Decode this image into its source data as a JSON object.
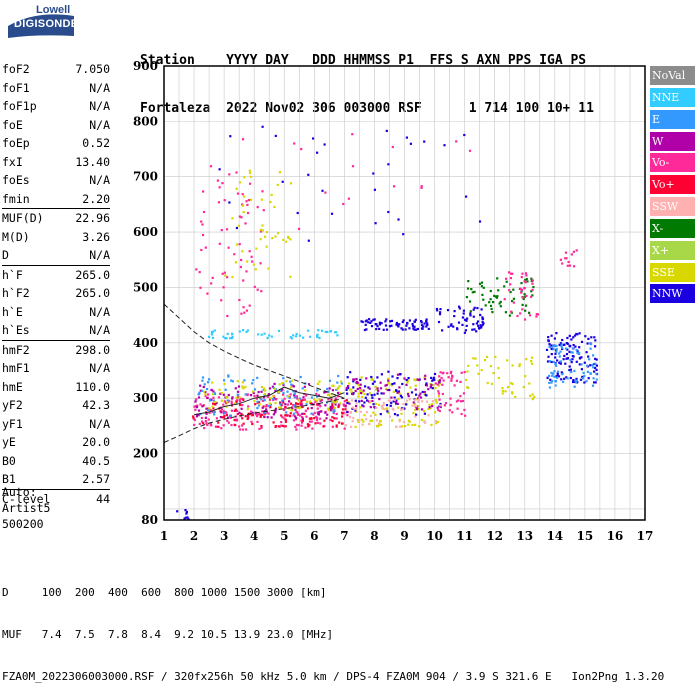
{
  "logo": {
    "line1": "Lowell",
    "line2": "DIGISONDE"
  },
  "header": {
    "line1": "Station    YYYY DAY   DDD HHMMSS P1  FFS S AXN PPS IGA PS",
    "line2": "Fortaleza  2022 Nov02 306 003000 RSF      1 714 100 10+ 11"
  },
  "params": [
    {
      "group": [
        {
          "name": "foF2",
          "value": "7.050"
        },
        {
          "name": "foF1",
          "value": "N/A"
        },
        {
          "name": "foF1p",
          "value": "N/A"
        },
        {
          "name": "foE",
          "value": "N/A"
        },
        {
          "name": "foEp",
          "value": "0.52"
        },
        {
          "name": "fxI",
          "value": "13.40"
        },
        {
          "name": "foEs",
          "value": "N/A"
        },
        {
          "name": "fmin",
          "value": "2.20"
        }
      ]
    },
    {
      "group": [
        {
          "name": "MUF(D)",
          "value": "22.96"
        },
        {
          "name": "M(D)",
          "value": "3.26"
        },
        {
          "name": "D",
          "value": "N/A"
        }
      ]
    },
    {
      "group": [
        {
          "name": "h`F",
          "value": "265.0"
        },
        {
          "name": "h`F2",
          "value": "265.0"
        },
        {
          "name": "h`E",
          "value": "N/A"
        },
        {
          "name": "h`Es",
          "value": "N/A"
        }
      ]
    },
    {
      "group": [
        {
          "name": "hmF2",
          "value": "298.0"
        },
        {
          "name": "hmF1",
          "value": "N/A"
        },
        {
          "name": "hmE",
          "value": "110.0"
        },
        {
          "name": "yF2",
          "value": "42.3"
        },
        {
          "name": "yF1",
          "value": "N/A"
        },
        {
          "name": "yE",
          "value": "20.0"
        },
        {
          "name": "B0",
          "value": "40.5"
        },
        {
          "name": "B1",
          "value": "2.57"
        }
      ]
    },
    {
      "group": [
        {
          "name": "C-level",
          "value": "44"
        }
      ]
    }
  ],
  "auto": {
    "line1": "Auto:",
    "line2": "Artist5",
    "line3": "500200"
  },
  "legend": [
    {
      "label": "NoVal",
      "color": "#8c8c8c"
    },
    {
      "label": "NNE",
      "color": "#33ccff"
    },
    {
      "label": "E",
      "color": "#3399ff"
    },
    {
      "label": "W",
      "color": "#b000a8"
    },
    {
      "label": "Vo-",
      "color": "#ff2a9a"
    },
    {
      "label": "Vo+",
      "color": "#ff0033"
    },
    {
      "label": "SSW",
      "color": "#ffb0b0"
    },
    {
      "label": "X-",
      "color": "#007a00"
    },
    {
      "label": "X+",
      "color": "#a8d848"
    },
    {
      "label": "SSE",
      "color": "#d8d800"
    },
    {
      "label": "NNW",
      "color": "#1a00e0"
    }
  ],
  "footer": {
    "line1": "D     100  200  400  600  800 1000 1500 3000 [km]",
    "line2": "MUF   7.4  7.5  7.8  8.4  9.2 10.5 13.9 23.0 [MHz]",
    "line3": "FZA0M_2022306003000.RSF / 320fx256h 50 kHz 5.0 km / DPS-4 FZA0M 904 / 3.9 S 321.6 E   Ion2Png 1.3.20"
  },
  "chart_data": {
    "type": "scatter",
    "title": "",
    "xlabel": "",
    "ylabel": "",
    "xlim": [
      1,
      17
    ],
    "ylim": [
      80,
      900
    ],
    "xticks": [
      1,
      2,
      3,
      4,
      5,
      6,
      7,
      8,
      9,
      10,
      11,
      12,
      13,
      14,
      15,
      16,
      17
    ],
    "yticks": [
      80,
      200,
      300,
      400,
      500,
      600,
      700,
      800,
      900
    ],
    "grid": true,
    "legend_position": "right",
    "clusters": [
      {
        "x": [
          1.3,
          1.9
        ],
        "y": [
          80,
          100
        ],
        "color": "#1a00e0",
        "density": 8
      },
      {
        "x": [
          1.9,
          7.1
        ],
        "y": [
          245,
          310
        ],
        "color": "#ff2a9a",
        "density": 200
      },
      {
        "x": [
          1.9,
          7.1
        ],
        "y": [
          250,
          300
        ],
        "color": "#ff0033",
        "density": 120
      },
      {
        "x": [
          2.0,
          6.9
        ],
        "y": [
          265,
          330
        ],
        "color": "#b000a8",
        "density": 110
      },
      {
        "x": [
          2.1,
          6.9
        ],
        "y": [
          270,
          345
        ],
        "color": "#3399ff",
        "density": 90
      },
      {
        "x": [
          2.2,
          7.0
        ],
        "y": [
          280,
          335
        ],
        "color": "#d8d800",
        "density": 80
      },
      {
        "x": [
          2.4,
          6.8
        ],
        "y": [
          410,
          425
        ],
        "color": "#33ccff",
        "density": 50
      },
      {
        "x": [
          2.0,
          4.2
        ],
        "y": [
          450,
          720
        ],
        "color": "#ff2a9a",
        "density": 60
      },
      {
        "x": [
          3.0,
          5.2
        ],
        "y": [
          520,
          730
        ],
        "color": "#d8d800",
        "density": 45
      },
      {
        "x": [
          7.0,
          10.2
        ],
        "y": [
          250,
          340
        ],
        "color": "#d8d800",
        "density": 110
      },
      {
        "x": [
          7.0,
          10.2
        ],
        "y": [
          270,
          350
        ],
        "color": "#1a00e0",
        "density": 90
      },
      {
        "x": [
          7.0,
          10.2
        ],
        "y": [
          280,
          345
        ],
        "color": "#b000a8",
        "density": 70
      },
      {
        "x": [
          7.0,
          10.2
        ],
        "y": [
          250,
          300
        ],
        "color": "#ffb0b0",
        "density": 60
      },
      {
        "x": [
          7.5,
          9.8
        ],
        "y": [
          425,
          445
        ],
        "color": "#1a00e0",
        "density": 70
      },
      {
        "x": [
          10.0,
          11.0
        ],
        "y": [
          270,
          350
        ],
        "color": "#ff2a9a",
        "density": 45
      },
      {
        "x": [
          10.0,
          11.6
        ],
        "y": [
          420,
          470
        ],
        "color": "#1a00e0",
        "density": 55
      },
      {
        "x": [
          11.0,
          13.3
        ],
        "y": [
          450,
          520
        ],
        "color": "#007a00",
        "density": 60
      },
      {
        "x": [
          11.0,
          13.3
        ],
        "y": [
          300,
          380
        ],
        "color": "#d8d800",
        "density": 45
      },
      {
        "x": [
          12.2,
          13.4
        ],
        "y": [
          440,
          530
        ],
        "color": "#ff2a9a",
        "density": 35
      },
      {
        "x": [
          13.7,
          15.4
        ],
        "y": [
          330,
          420
        ],
        "color": "#1a00e0",
        "density": 120
      },
      {
        "x": [
          13.7,
          15.4
        ],
        "y": [
          320,
          400
        ],
        "color": "#3399ff",
        "density": 70
      },
      {
        "x": [
          14.0,
          15.0
        ],
        "y": [
          540,
          570
        ],
        "color": "#ff2a9a",
        "density": 12
      },
      {
        "x": [
          2.5,
          11.5
        ],
        "y": [
          580,
          800
        ],
        "color": "#1a00e0",
        "density": 30
      },
      {
        "x": [
          2.5,
          11.5
        ],
        "y": [
          600,
          780
        ],
        "color": "#ff2a9a",
        "density": 20
      }
    ],
    "traces": [
      {
        "name": "",
        "style": "dashed",
        "x": [
          1,
          1.5,
          2,
          2.5,
          3,
          3.5,
          4,
          4.5,
          5,
          5.5,
          6,
          6.5,
          7
        ],
        "y": [
          470,
          445,
          420,
          400,
          385,
          372,
          360,
          350,
          340,
          330,
          320,
          310,
          300
        ]
      },
      {
        "name": "",
        "style": "dashed",
        "x": [
          1,
          1.5,
          2,
          2.5,
          3,
          3.5,
          4,
          4.5,
          5,
          5.5,
          6,
          6.5,
          7
        ],
        "y": [
          220,
          232,
          245,
          255,
          262,
          268,
          273,
          277,
          281,
          285,
          289,
          294,
          300
        ]
      },
      {
        "name": "",
        "style": "solid",
        "x": [
          2,
          2.5,
          3,
          3.5,
          4,
          4.5,
          5,
          5.5,
          6,
          6.5,
          7
        ],
        "y": [
          270,
          275,
          285,
          290,
          300,
          305,
          320,
          310,
          305,
          300,
          310
        ]
      }
    ]
  }
}
